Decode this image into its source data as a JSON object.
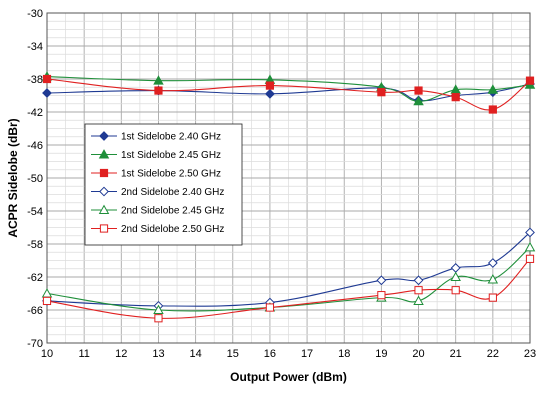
{
  "chart_data": {
    "type": "line",
    "title": "",
    "xlabel": "Output Power (dBm)",
    "ylabel": "ACPR Sidelobe (dBr)",
    "xlim": [
      10,
      23
    ],
    "ylim": [
      -70,
      -30
    ],
    "x_ticks": [
      "10",
      "11",
      "12",
      "13",
      "14",
      "15",
      "16",
      "17",
      "18",
      "19",
      "20",
      "21",
      "22",
      "23"
    ],
    "y_ticks": [
      "-30",
      "-34",
      "-38",
      "-42",
      "-46",
      "-50",
      "-54",
      "-58",
      "-62",
      "-66",
      "-70"
    ],
    "grid": true,
    "legend_position": "left-middle",
    "series": [
      {
        "name": "1st Sidelobe 2.40 GHz",
        "color": "#1f3a93",
        "marker": "diamond-filled",
        "x": [
          10,
          13,
          16,
          19,
          20,
          21,
          22,
          23
        ],
        "y": [
          -39.7,
          -39.4,
          -39.8,
          -39.1,
          -40.6,
          -40.0,
          -39.6,
          -38.6
        ]
      },
      {
        "name": "1st Sidelobe 2.45 GHz",
        "color": "#1f8f3a",
        "marker": "triangle-filled",
        "x": [
          10,
          13,
          16,
          19,
          20,
          21,
          22,
          23
        ],
        "y": [
          -37.7,
          -38.2,
          -38.1,
          -39.0,
          -40.7,
          -39.3,
          -39.3,
          -38.7
        ]
      },
      {
        "name": "1st Sidelobe 2.50 GHz",
        "color": "#e02020",
        "marker": "square-filled",
        "x": [
          10,
          13,
          16,
          19,
          20,
          21,
          22,
          23
        ],
        "y": [
          -38.0,
          -39.4,
          -38.8,
          -39.6,
          -39.4,
          -40.2,
          -41.7,
          -38.2
        ]
      },
      {
        "name": "2nd Sidelobe 2.40 GHz",
        "color": "#1f3a93",
        "marker": "diamond-open",
        "x": [
          10,
          13,
          16,
          19,
          20,
          21,
          22,
          23
        ],
        "y": [
          -64.9,
          -65.5,
          -65.1,
          -62.4,
          -62.4,
          -60.9,
          -60.3,
          -56.6
        ]
      },
      {
        "name": "2nd Sidelobe 2.45 GHz",
        "color": "#1f8f3a",
        "marker": "triangle-open",
        "x": [
          10,
          13,
          16,
          19,
          20,
          21,
          22,
          23
        ],
        "y": [
          -64.0,
          -66.0,
          -65.7,
          -64.5,
          -64.9,
          -62.0,
          -62.3,
          -58.4
        ]
      },
      {
        "name": "2nd Sidelobe 2.50 GHz",
        "color": "#e02020",
        "marker": "square-open",
        "x": [
          10,
          13,
          16,
          19,
          20,
          21,
          22,
          23
        ],
        "y": [
          -64.9,
          -67.0,
          -65.7,
          -64.2,
          -63.6,
          -63.6,
          -64.5,
          -59.8
        ]
      }
    ]
  }
}
